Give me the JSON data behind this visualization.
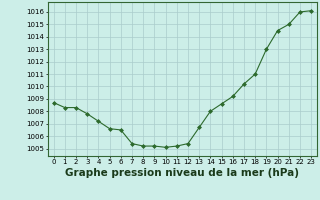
{
  "x": [
    0,
    1,
    2,
    3,
    4,
    5,
    6,
    7,
    8,
    9,
    10,
    11,
    12,
    13,
    14,
    15,
    16,
    17,
    18,
    19,
    20,
    21,
    22,
    23
  ],
  "y": [
    1008.7,
    1008.3,
    1008.3,
    1007.8,
    1007.2,
    1006.6,
    1006.5,
    1005.4,
    1005.2,
    1005.2,
    1005.1,
    1005.2,
    1005.4,
    1006.7,
    1008.0,
    1008.6,
    1009.2,
    1010.2,
    1011.0,
    1013.0,
    1014.5,
    1015.0,
    1016.0,
    1016.1
  ],
  "line_color": "#2d6a2d",
  "marker_color": "#2d6a2d",
  "bg_color": "#cceee8",
  "grid_color": "#aacccc",
  "xlabel": "Graphe pression niveau de la mer (hPa)",
  "xlabel_fontsize": 7.5,
  "ylabel_ticks": [
    1005,
    1006,
    1007,
    1008,
    1009,
    1010,
    1011,
    1012,
    1013,
    1014,
    1015,
    1016
  ],
  "ylim": [
    1004.4,
    1016.8
  ],
  "xlim": [
    -0.5,
    23.5
  ],
  "xticks": [
    0,
    1,
    2,
    3,
    4,
    5,
    6,
    7,
    8,
    9,
    10,
    11,
    12,
    13,
    14,
    15,
    16,
    17,
    18,
    19,
    20,
    21,
    22,
    23
  ],
  "tick_fontsize": 5.0
}
